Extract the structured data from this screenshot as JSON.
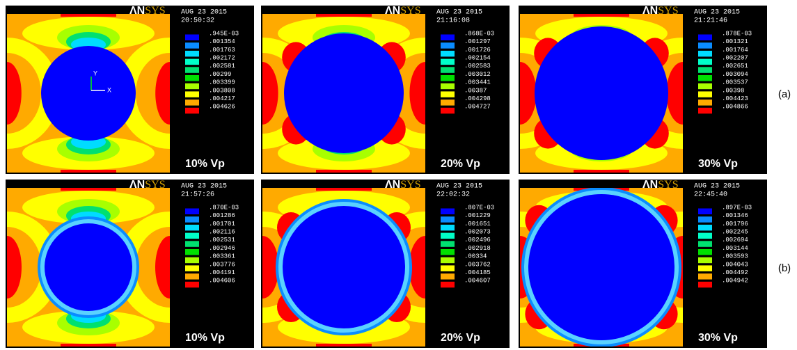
{
  "rows": [
    {
      "label": "(a)",
      "panels": [
        {
          "logo_a": "ΛN",
          "logo_b": "SYS",
          "date": "AUG 23 2015",
          "time": "20:50:32",
          "legend": [
            ".945E-03",
            ".001354",
            ".001763",
            ".002172",
            ".002581",
            ".00299",
            ".003399",
            ".003808",
            ".004217",
            ".004626"
          ],
          "caption": "10% Vp",
          "axis_y": "Y",
          "axis_x": "X"
        },
        {
          "logo_a": "ΛN",
          "logo_b": "SYS",
          "date": "AUG 23 2015",
          "time": "21:16:08",
          "legend": [
            ".868E-03",
            ".001297",
            ".001726",
            ".002154",
            ".002583",
            ".003012",
            ".003441",
            ".00387",
            ".004298",
            ".004727"
          ],
          "caption": "20% Vp"
        },
        {
          "logo_a": "ΛN",
          "logo_b": "SYS",
          "date": "AUG 23 2015",
          "time": "21:21:46",
          "legend": [
            ".878E-03",
            ".001321",
            ".001764",
            ".002207",
            ".002651",
            ".003094",
            ".003537",
            ".00398",
            ".004423",
            ".004866"
          ],
          "caption": "30% Vp"
        }
      ]
    },
    {
      "label": "(b)",
      "panels": [
        {
          "logo_a": "ΛN",
          "logo_b": "SYS",
          "date": "AUG 23 2015",
          "time": "21:57:26",
          "legend": [
            ".870E-03",
            ".001286",
            ".001701",
            ".002116",
            ".002531",
            ".002946",
            ".003361",
            ".003776",
            ".004191",
            ".004606"
          ],
          "caption": "10% Vp"
        },
        {
          "logo_a": "ΛN",
          "logo_b": "SYS",
          "date": "AUG 23 2015",
          "time": "22:02:32",
          "legend": [
            ".807E-03",
            ".001229",
            ".001651",
            ".002073",
            ".002496",
            ".002918",
            ".00334",
            ".003762",
            ".004185",
            ".004607"
          ],
          "caption": "20% Vp"
        },
        {
          "logo_a": "ΛN",
          "logo_b": "SYS",
          "date": "AUG 23 2015",
          "time": "22:45:40",
          "legend": [
            ".897E-03",
            ".001346",
            ".001796",
            ".002245",
            ".002694",
            ".003144",
            ".003593",
            ".004043",
            ".004492",
            ".004942"
          ],
          "caption": "30% Vp"
        }
      ]
    }
  ]
}
